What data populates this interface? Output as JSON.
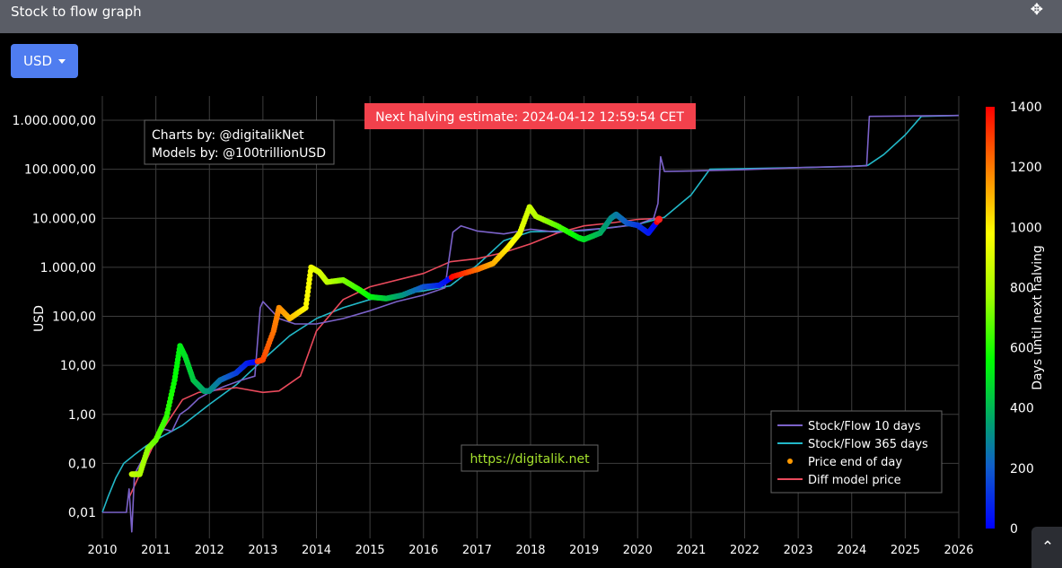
{
  "window": {
    "title": "Stock to flow graph",
    "move_icon": "move-arrows-icon"
  },
  "controls": {
    "currency_label": "USD",
    "scroll_top_icon": "chevron-up-icon"
  },
  "annotations": {
    "credits_line1": "Charts by: @digitalikNet",
    "credits_line2": "Models by: @100trillionUSD",
    "halving_banner": "Next halving estimate: 2024-04-12 12:59:54 CET",
    "site_link": "https://digitalik.net"
  },
  "colors": {
    "s2f10": "#7b62c9",
    "s2f365": "#22b8c8",
    "price": "#ff9900",
    "diff_model": "#ea4a5c",
    "banner_bg": "#f2414c",
    "link_text": "#a6e22e"
  },
  "chart_data": {
    "type": "line",
    "title": "",
    "xlabel": "",
    "ylabel": "USD",
    "y_scale": "log",
    "xlim": [
      2010,
      2026
    ],
    "ylim": [
      0.004,
      1400000
    ],
    "x_ticks": [
      "2010",
      "2011",
      "2012",
      "2013",
      "2014",
      "2015",
      "2016",
      "2017",
      "2018",
      "2019",
      "2020",
      "2021",
      "2022",
      "2023",
      "2024",
      "2025",
      "2026"
    ],
    "y_ticks": [
      {
        "value": 0.01,
        "label": "0,01"
      },
      {
        "value": 0.1,
        "label": "0,10"
      },
      {
        "value": 1,
        "label": "1,00"
      },
      {
        "value": 10,
        "label": "10,00"
      },
      {
        "value": 100,
        "label": "100,00"
      },
      {
        "value": 1000,
        "label": "1.000,00"
      },
      {
        "value": 10000,
        "label": "10.000,00"
      },
      {
        "value": 100000,
        "label": "100.000,00"
      },
      {
        "value": 1000000,
        "label": "1.000.000,00"
      }
    ],
    "legend_position": "bottom-right",
    "colorbar": {
      "label": "Days until next halving",
      "min": 0,
      "max": 1400,
      "ticks": [
        "0",
        "200",
        "400",
        "600",
        "800",
        "1000",
        "1200",
        "1400"
      ]
    },
    "series": [
      {
        "name": "Stock/Flow 10 days",
        "points": [
          [
            2010.0,
            0.01
          ],
          [
            2010.45,
            0.01
          ],
          [
            2010.5,
            0.03
          ],
          [
            2010.55,
            0.004
          ],
          [
            2010.6,
            0.06
          ],
          [
            2010.75,
            0.12
          ],
          [
            2010.9,
            0.2
          ],
          [
            2011.0,
            0.3
          ],
          [
            2011.15,
            0.5
          ],
          [
            2011.3,
            0.45
          ],
          [
            2011.45,
            1.0
          ],
          [
            2011.6,
            1.3
          ],
          [
            2011.8,
            2.1
          ],
          [
            2012.0,
            2.8
          ],
          [
            2012.3,
            3.8
          ],
          [
            2012.6,
            5.0
          ],
          [
            2012.85,
            6.0
          ],
          [
            2012.95,
            150
          ],
          [
            2013.0,
            200
          ],
          [
            2013.3,
            90
          ],
          [
            2013.6,
            70
          ],
          [
            2014.0,
            70
          ],
          [
            2014.5,
            90
          ],
          [
            2015.0,
            130
          ],
          [
            2015.5,
            200
          ],
          [
            2016.0,
            270
          ],
          [
            2016.4,
            380
          ],
          [
            2016.55,
            5200
          ],
          [
            2016.7,
            7000
          ],
          [
            2017.0,
            5500
          ],
          [
            2017.5,
            4800
          ],
          [
            2018.0,
            6000
          ],
          [
            2018.5,
            5200
          ],
          [
            2019.0,
            5800
          ],
          [
            2019.5,
            6400
          ],
          [
            2020.0,
            7500
          ],
          [
            2020.3,
            10000
          ],
          [
            2020.38,
            20000
          ],
          [
            2020.43,
            180000
          ],
          [
            2020.5,
            90000
          ],
          [
            2021.0,
            92000
          ],
          [
            2022.0,
            98000
          ],
          [
            2023.0,
            108000
          ],
          [
            2024.0,
            115000
          ],
          [
            2024.28,
            118000
          ],
          [
            2024.33,
            1200000
          ],
          [
            2025.0,
            1220000
          ],
          [
            2026.0,
            1250000
          ]
        ]
      },
      {
        "name": "Stock/Flow 365 days",
        "points": [
          [
            2010.0,
            0.01
          ],
          [
            2010.1,
            0.02
          ],
          [
            2010.25,
            0.05
          ],
          [
            2010.4,
            0.1
          ],
          [
            2010.6,
            0.15
          ],
          [
            2010.8,
            0.22
          ],
          [
            2011.0,
            0.3
          ],
          [
            2011.5,
            0.6
          ],
          [
            2012.0,
            1.6
          ],
          [
            2012.5,
            4.0
          ],
          [
            2013.0,
            13
          ],
          [
            2013.5,
            40
          ],
          [
            2014.0,
            90
          ],
          [
            2014.5,
            150
          ],
          [
            2015.0,
            220
          ],
          [
            2015.5,
            280
          ],
          [
            2016.0,
            330
          ],
          [
            2016.5,
            420
          ],
          [
            2017.0,
            1100
          ],
          [
            2017.5,
            3500
          ],
          [
            2018.0,
            5300
          ],
          [
            2019.0,
            5600
          ],
          [
            2020.0,
            7500
          ],
          [
            2020.5,
            10500
          ],
          [
            2021.0,
            30000
          ],
          [
            2021.35,
            100000
          ],
          [
            2022.0,
            103000
          ],
          [
            2023.0,
            108000
          ],
          [
            2024.0,
            114000
          ],
          [
            2024.3,
            120000
          ],
          [
            2024.6,
            200000
          ],
          [
            2025.0,
            500000
          ],
          [
            2025.3,
            1200000
          ],
          [
            2026.0,
            1250000
          ]
        ]
      },
      {
        "name": "Price end of day",
        "points": [
          [
            2010.55,
            0.06
          ],
          [
            2010.7,
            0.06
          ],
          [
            2010.85,
            0.2
          ],
          [
            2011.0,
            0.3
          ],
          [
            2011.2,
            0.9
          ],
          [
            2011.35,
            5
          ],
          [
            2011.45,
            25
          ],
          [
            2011.55,
            15
          ],
          [
            2011.7,
            5
          ],
          [
            2011.9,
            3
          ],
          [
            2012.0,
            3
          ],
          [
            2012.2,
            5
          ],
          [
            2012.5,
            7
          ],
          [
            2012.7,
            11
          ],
          [
            2012.9,
            12
          ],
          [
            2013.0,
            13
          ],
          [
            2013.2,
            50
          ],
          [
            2013.3,
            150
          ],
          [
            2013.5,
            90
          ],
          [
            2013.8,
            150
          ],
          [
            2013.9,
            1000
          ],
          [
            2014.05,
            800
          ],
          [
            2014.2,
            500
          ],
          [
            2014.5,
            550
          ],
          [
            2014.8,
            350
          ],
          [
            2015.0,
            250
          ],
          [
            2015.3,
            230
          ],
          [
            2015.6,
            270
          ],
          [
            2016.0,
            400
          ],
          [
            2016.3,
            430
          ],
          [
            2016.55,
            650
          ],
          [
            2017.0,
            900
          ],
          [
            2017.3,
            1200
          ],
          [
            2017.6,
            2700
          ],
          [
            2017.8,
            5000
          ],
          [
            2017.98,
            17000
          ],
          [
            2018.1,
            11000
          ],
          [
            2018.5,
            7000
          ],
          [
            2018.9,
            4000
          ],
          [
            2019.0,
            3700
          ],
          [
            2019.3,
            5000
          ],
          [
            2019.5,
            10000
          ],
          [
            2019.6,
            12000
          ],
          [
            2019.8,
            8000
          ],
          [
            2020.0,
            7200
          ],
          [
            2020.2,
            5000
          ],
          [
            2020.4,
            9500
          ]
        ]
      },
      {
        "name": "Diff model price",
        "points": [
          [
            2010.5,
            0.02
          ],
          [
            2010.7,
            0.06
          ],
          [
            2011.0,
            0.3
          ],
          [
            2011.5,
            2.0
          ],
          [
            2011.8,
            2.8
          ],
          [
            2012.0,
            3.0
          ],
          [
            2012.5,
            3.5
          ],
          [
            2013.0,
            2.8
          ],
          [
            2013.3,
            3.0
          ],
          [
            2013.7,
            6
          ],
          [
            2014.0,
            50
          ],
          [
            2014.5,
            220
          ],
          [
            2015.0,
            400
          ],
          [
            2016.0,
            750
          ],
          [
            2016.5,
            1300
          ],
          [
            2017.0,
            1500
          ],
          [
            2017.5,
            2000
          ],
          [
            2018.0,
            3000
          ],
          [
            2018.5,
            5000
          ],
          [
            2019.0,
            7000
          ],
          [
            2019.5,
            8000
          ],
          [
            2020.0,
            9500
          ],
          [
            2020.4,
            10000
          ]
        ]
      }
    ]
  }
}
